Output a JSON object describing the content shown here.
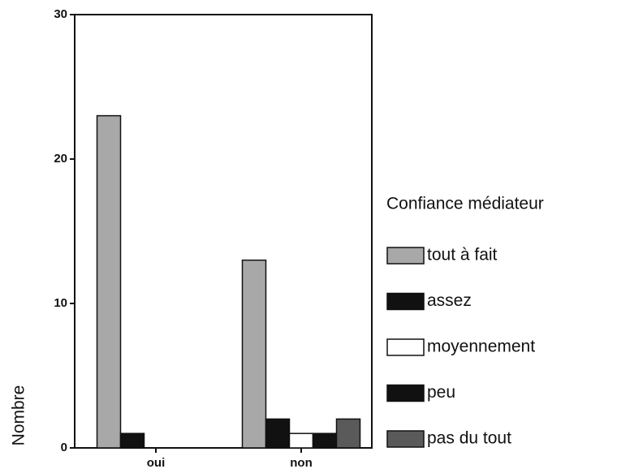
{
  "chart_data": {
    "type": "bar",
    "categories": [
      "oui",
      "non"
    ],
    "y_label": "Nombre",
    "legend_title": "Confiance médiateur",
    "legend": "right",
    "series": [
      {
        "name": "tout à fait",
        "color": "#a8a8a8",
        "values": [
          23,
          13
        ]
      },
      {
        "name": "assez",
        "color": "#111111",
        "values": [
          1,
          2
        ]
      },
      {
        "name": "moyennement",
        "color": "#ffffff",
        "values": [
          0,
          1
        ]
      },
      {
        "name": "peu",
        "color": "#111111",
        "values": [
          0,
          1
        ]
      },
      {
        "name": "pas du tout",
        "color": "#5a5a5a",
        "values": [
          0,
          2
        ]
      }
    ],
    "ylim": [
      0,
      30
    ],
    "yticks": [
      0,
      10,
      20,
      30
    ],
    "grid": false
  }
}
